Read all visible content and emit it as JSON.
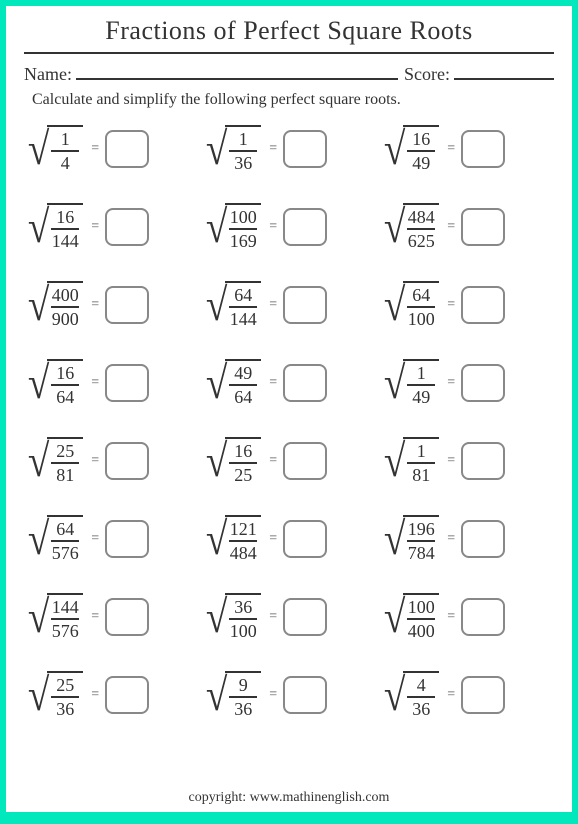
{
  "page": {
    "background_color": "#00e8bc",
    "paper_color": "#ffffff",
    "text_color": "#333333",
    "box_border_color": "#888888"
  },
  "title": "Fractions of Perfect Square Roots",
  "labels": {
    "name": "Name:",
    "score": "Score:"
  },
  "instruction": "Calculate and simplify the following perfect square roots.",
  "problems": [
    [
      {
        "num": "1",
        "den": "4"
      },
      {
        "num": "1",
        "den": "36"
      },
      {
        "num": "16",
        "den": "49"
      }
    ],
    [
      {
        "num": "16",
        "den": "144"
      },
      {
        "num": "100",
        "den": "169"
      },
      {
        "num": "484",
        "den": "625"
      }
    ],
    [
      {
        "num": "400",
        "den": "900"
      },
      {
        "num": "64",
        "den": "144"
      },
      {
        "num": "64",
        "den": "100"
      }
    ],
    [
      {
        "num": "16",
        "den": "64"
      },
      {
        "num": "49",
        "den": "64"
      },
      {
        "num": "1",
        "den": "49"
      }
    ],
    [
      {
        "num": "25",
        "den": "81"
      },
      {
        "num": "16",
        "den": "25"
      },
      {
        "num": "1",
        "den": "81"
      }
    ],
    [
      {
        "num": "64",
        "den": "576"
      },
      {
        "num": "121",
        "den": "484"
      },
      {
        "num": "196",
        "den": "784"
      }
    ],
    [
      {
        "num": "144",
        "den": "576"
      },
      {
        "num": "36",
        "den": "100"
      },
      {
        "num": "100",
        "den": "400"
      }
    ],
    [
      {
        "num": "25",
        "den": "36"
      },
      {
        "num": "9",
        "den": "36"
      },
      {
        "num": "4",
        "den": "36"
      }
    ]
  ],
  "copyright": "copyright:   www.mathinenglish.com",
  "style": {
    "title_fontsize": 26,
    "instruction_fontsize": 16,
    "fraction_fontsize": 18,
    "answer_box": {
      "width": 44,
      "height": 38,
      "border_radius": 8,
      "border_width": 2
    },
    "grid": {
      "rows": 8,
      "cols": 3,
      "row_gap": 18
    }
  }
}
